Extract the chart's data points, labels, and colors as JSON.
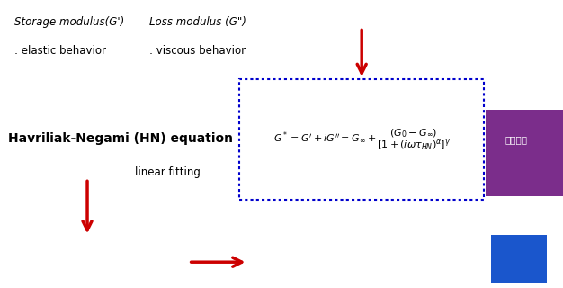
{
  "bg_color": "#ffffff",
  "text_storage_modulus": "Storage modulus(G’)",
  "text_storage_sub": ": elastic behavior",
  "text_loss_modulus": "Loss modulus (G’’)",
  "text_loss_sub": ": viscous behavior",
  "text_hn_equation": "Havriliak-Negami (HN) equation",
  "text_linear_fitting": "linear fitting",
  "arrow_color": "#cc0000",
  "box_color": "#0000cc",
  "blue_color": "#1a56cc"
}
